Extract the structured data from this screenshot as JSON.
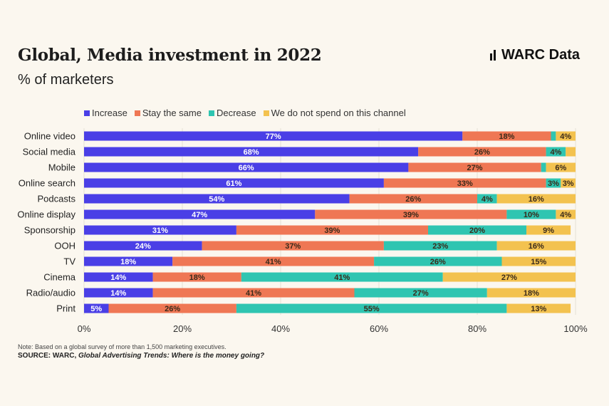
{
  "title": "Global, Media investment in 2022",
  "subtitle": "% of marketers",
  "logo": "WARC Data",
  "note": "Note: Based on a global survey of more than 1,500 marketing executives.",
  "source_prefix": "SOURCE: WARC, ",
  "source_title": "Global Advertising Trends: Where is the money going?",
  "chart_data": {
    "type": "bar",
    "orientation": "horizontal",
    "stacked": true,
    "categories": [
      "Online video",
      "Social media",
      "Mobile",
      "Online search",
      "Podcasts",
      "Online display",
      "Sponsorship",
      "OOH",
      "TV",
      "Cinema",
      "Radio/audio",
      "Print"
    ],
    "series": [
      {
        "name": "Increase",
        "color": "#4a3fe6",
        "values": [
          77,
          68,
          66,
          61,
          54,
          47,
          31,
          24,
          18,
          14,
          14,
          5
        ]
      },
      {
        "name": "Stay the same",
        "color": "#ef7754",
        "values": [
          18,
          26,
          27,
          33,
          26,
          39,
          39,
          37,
          41,
          18,
          41,
          26
        ]
      },
      {
        "name": "Decrease",
        "color": "#2fc5b1",
        "values": [
          1,
          4,
          1,
          3,
          4,
          10,
          20,
          23,
          26,
          41,
          27,
          55
        ]
      },
      {
        "name": "We do not spend on this channel",
        "color": "#f3c24f",
        "values": [
          4,
          2,
          6,
          3,
          16,
          4,
          9,
          16,
          15,
          27,
          18,
          13
        ]
      }
    ],
    "xlim": [
      0,
      100
    ],
    "xticks": [
      "0%",
      "20%",
      "40%",
      "60%",
      "80%",
      "100%"
    ],
    "grid": true,
    "legend": "top"
  }
}
